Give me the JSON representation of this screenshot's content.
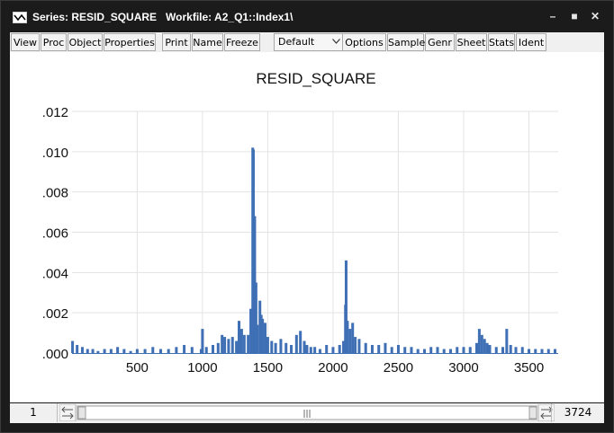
{
  "window": {
    "title": "Series: RESID_SQUARE   Workfile: A2_Q1::Index1\\",
    "controls": [
      "minimize-icon",
      "maximize-icon",
      "close-icon"
    ]
  },
  "toolbar": {
    "buttons": [
      "View",
      "Proc",
      "Object",
      "Properties",
      "Print",
      "Name",
      "Freeze",
      "Options",
      "Sample",
      "Genr",
      "Sheet",
      "Stats",
      "Ident"
    ],
    "view_select": {
      "value": "Default"
    }
  },
  "chart_data": {
    "type": "bar",
    "title": "RESID_SQUARE",
    "xlabel": "",
    "ylabel": "",
    "xlim": [
      1,
      3724
    ],
    "ylim": [
      0,
      0.012
    ],
    "xticks": [
      500,
      1000,
      1500,
      2000,
      2500,
      3000,
      3500
    ],
    "ytick_labels": [
      ".000",
      ".002",
      ".004",
      ".006",
      ".008",
      ".010",
      ".012"
    ],
    "grid": true,
    "color": "#3f6fb4",
    "series": [
      {
        "x": [
          5,
          40,
          80,
          120,
          160,
          200,
          250,
          300,
          350,
          400,
          450,
          500,
          560,
          620,
          680,
          740,
          800,
          860,
          920,
          990,
          1000,
          1030,
          1080,
          1120,
          1150,
          1170,
          1200,
          1230,
          1260,
          1280,
          1300,
          1320,
          1350,
          1370,
          1385,
          1390,
          1400,
          1410,
          1420,
          1440,
          1450,
          1460,
          1480,
          1500,
          1530,
          1560,
          1600,
          1640,
          1680,
          1720,
          1750,
          1780,
          1800,
          1830,
          1860,
          1900,
          1950,
          2000,
          2050,
          2080,
          2095,
          2100,
          2110,
          2130,
          2150,
          2170,
          2200,
          2250,
          2300,
          2350,
          2400,
          2450,
          2500,
          2550,
          2600,
          2650,
          2700,
          2750,
          2800,
          2850,
          2900,
          2950,
          3000,
          3050,
          3100,
          3120,
          3140,
          3160,
          3180,
          3200,
          3250,
          3300,
          3330,
          3360,
          3400,
          3450,
          3500,
          3550,
          3600,
          3650,
          3700
        ],
        "values": [
          0.0006,
          0.0004,
          0.0003,
          0.0002,
          0.0002,
          0.0001,
          0.0002,
          0.0002,
          0.0003,
          0.0002,
          0.0001,
          0.0002,
          0.0002,
          0.0003,
          0.0002,
          0.0002,
          0.0003,
          0.0004,
          0.0003,
          0.0002,
          0.0012,
          0.0003,
          0.0004,
          0.0005,
          0.0009,
          0.0008,
          0.0007,
          0.0008,
          0.0006,
          0.0016,
          0.0012,
          0.0009,
          0.0009,
          0.0022,
          0.0102,
          0.0101,
          0.0068,
          0.0035,
          0.0014,
          0.0026,
          0.0019,
          0.0017,
          0.0015,
          0.0008,
          0.0006,
          0.0005,
          0.0007,
          0.0005,
          0.0004,
          0.0009,
          0.0011,
          0.0006,
          0.0004,
          0.0003,
          0.0003,
          0.0002,
          0.0004,
          0.0003,
          0.0004,
          0.0006,
          0.0024,
          0.0046,
          0.0016,
          0.0012,
          0.0015,
          0.0008,
          0.0007,
          0.0005,
          0.0004,
          0.0004,
          0.0005,
          0.0003,
          0.0004,
          0.0003,
          0.0003,
          0.0002,
          0.0002,
          0.0003,
          0.0003,
          0.0002,
          0.0002,
          0.0003,
          0.0003,
          0.0003,
          0.0005,
          0.0012,
          0.0009,
          0.0007,
          0.0005,
          0.0004,
          0.0003,
          0.0003,
          0.0012,
          0.0004,
          0.0003,
          0.0003,
          0.0002,
          0.0002,
          0.0002,
          0.0002,
          0.0002
        ]
      }
    ]
  },
  "statusbar": {
    "first_obs": "1",
    "last_obs": "3724",
    "scroll_thumb_label": "|||"
  }
}
